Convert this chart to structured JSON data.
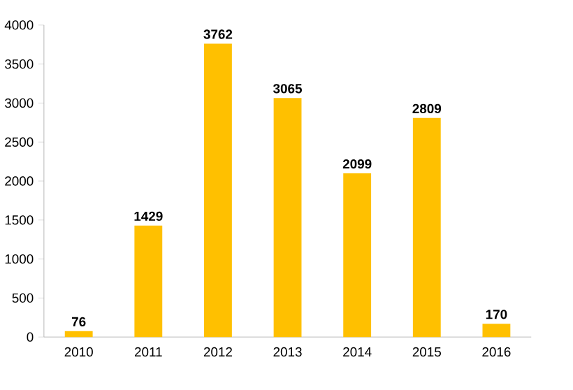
{
  "chart_data": {
    "type": "bar",
    "categories": [
      "2010",
      "2011",
      "2012",
      "2013",
      "2014",
      "2015",
      "2016"
    ],
    "values": [
      76,
      1429,
      3762,
      3065,
      2099,
      2809,
      170
    ],
    "color": "#ffc000",
    "ylim": [
      0,
      4000
    ],
    "yticks": [
      0,
      500,
      1000,
      1500,
      2000,
      2500,
      3000,
      3500,
      4000
    ],
    "data_labels": true
  }
}
